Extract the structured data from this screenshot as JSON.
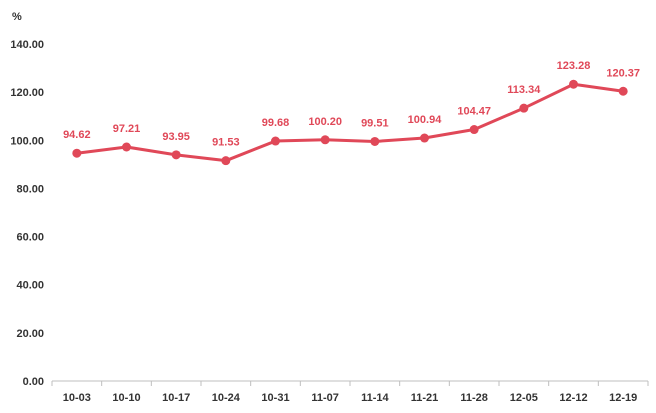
{
  "chart_data": {
    "type": "line",
    "title": "",
    "xlabel": "",
    "ylabel": "",
    "y_unit": "%",
    "ylim": [
      0,
      140
    ],
    "y_ticks": [
      "0.00",
      "20.00",
      "40.00",
      "60.00",
      "80.00",
      "100.00",
      "120.00",
      "140.00"
    ],
    "grid": false,
    "legend": "none",
    "categories": [
      "10-03",
      "10-10",
      "10-17",
      "10-24",
      "10-31",
      "11-07",
      "11-14",
      "11-21",
      "11-28",
      "12-05",
      "12-12",
      "12-19"
    ],
    "series": [
      {
        "color": "#e04858",
        "values": [
          94.62,
          97.21,
          93.95,
          91.53,
          99.68,
          100.2,
          99.51,
          100.94,
          104.47,
          113.34,
          123.28,
          120.37
        ],
        "labels": [
          "94.62",
          "97.21",
          "93.95",
          "91.53",
          "99.68",
          "100.20",
          "99.51",
          "100.94",
          "104.47",
          "113.34",
          "123.28",
          "120.37"
        ]
      }
    ]
  }
}
